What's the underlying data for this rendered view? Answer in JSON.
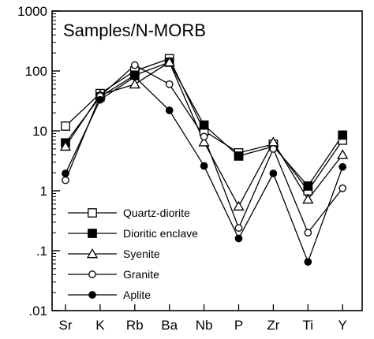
{
  "chart_data": {
    "type": "line",
    "title": "Samples/N-MORB",
    "xlabel": "",
    "ylabel": "",
    "yscale": "log",
    "ylim": [
      0.01,
      1000
    ],
    "yticks": [
      {
        "value": 0.01,
        "label": ".01"
      },
      {
        "value": 0.1,
        "label": ".1"
      },
      {
        "value": 1,
        "label": "1"
      },
      {
        "value": 10,
        "label": "10"
      },
      {
        "value": 100,
        "label": "100"
      },
      {
        "value": 1000,
        "label": "1000"
      }
    ],
    "categories": [
      "Sr",
      "K",
      "Rb",
      "Ba",
      "Nb",
      "P",
      "Zr",
      "Ti",
      "Y"
    ],
    "grid": false,
    "legend_position": "bottom-left",
    "series": [
      {
        "name": "Quartz-diorite",
        "marker": "square-open",
        "values": [
          12,
          42,
          100,
          160,
          10,
          4.3,
          6,
          1.0,
          7
        ]
      },
      {
        "name": "Dioritic enclave",
        "marker": "square-filled",
        "values": [
          6.3,
          37,
          85,
          140,
          12.5,
          3.8,
          5.5,
          1.2,
          8.5
        ]
      },
      {
        "name": "Syenite",
        "marker": "triangle-open",
        "values": [
          5.5,
          40,
          60,
          140,
          6.5,
          0.55,
          6.5,
          0.72,
          4
        ]
      },
      {
        "name": "Granite",
        "marker": "circle-open",
        "values": [
          1.5,
          38,
          125,
          60,
          8,
          0.24,
          5,
          0.2,
          1.1
        ]
      },
      {
        "name": "Aplite",
        "marker": "circle-filled",
        "values": [
          1.95,
          33,
          80,
          22,
          2.6,
          0.16,
          1.95,
          0.065,
          2.5
        ]
      }
    ]
  }
}
